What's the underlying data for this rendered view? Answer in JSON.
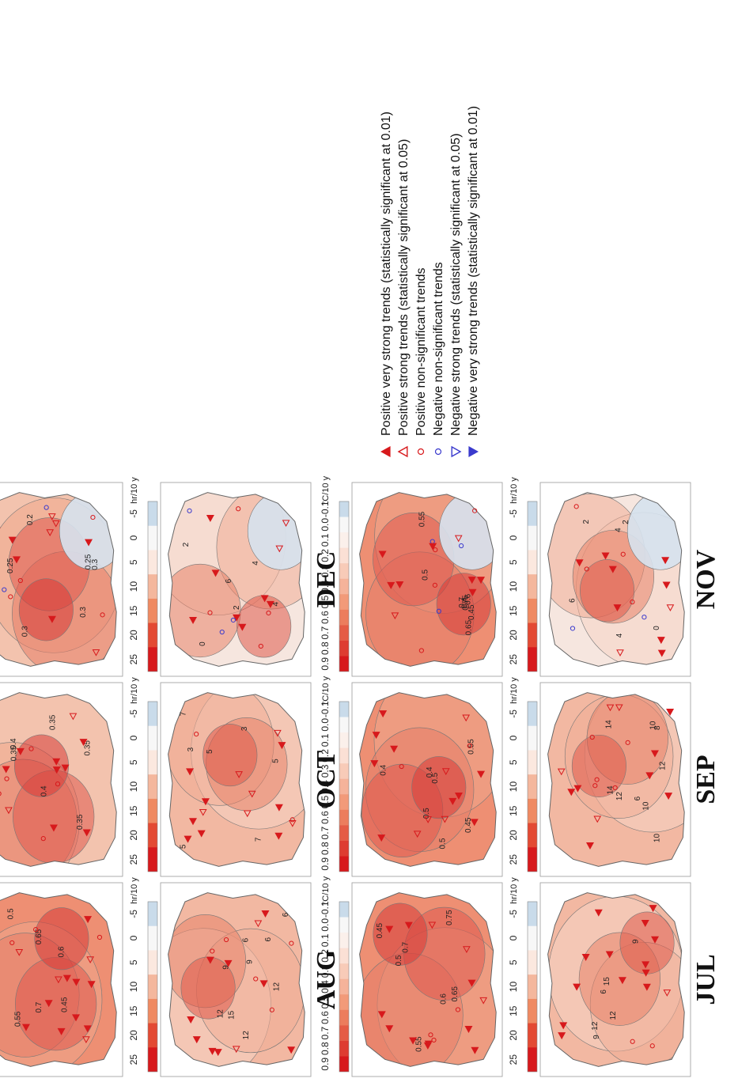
{
  "figure": {
    "panels": [
      {
        "month": "JUL",
        "hr_contours": [
          "6",
          "9",
          "9",
          "12",
          "12",
          "15"
        ],
        "temp_contours": [
          "0.45",
          "0.5",
          "0.55",
          "0.6",
          "0.65",
          "0.7",
          "0.75"
        ]
      },
      {
        "month": "SEP",
        "hr_contours": [
          "6",
          "8",
          "10",
          "10",
          "12",
          "12",
          "14",
          "14",
          "10"
        ],
        "temp_contours": [
          "0.4",
          "0.45",
          "0.5",
          "0.5",
          "0.5",
          "0.55",
          "0.4"
        ]
      },
      {
        "month": "NOV",
        "hr_contours": [
          "0",
          "2",
          "2",
          "4",
          "4",
          "6"
        ],
        "temp_contours": [
          "0.4",
          "0.45",
          "0.5",
          "0.55",
          "0.6",
          "0.65",
          "0.7",
          "0.75"
        ]
      },
      {
        "month": "AUG",
        "hr_contours": [
          "6",
          "6",
          "9",
          "9",
          "12",
          "12",
          "15",
          "6",
          "12"
        ],
        "temp_contours": [
          "0.4",
          "0.45",
          "0.5",
          "0.55",
          "0.6",
          "0.65",
          "0.7"
        ]
      },
      {
        "month": "OCT",
        "hr_contours": [
          "3",
          "3",
          "5",
          "5",
          "5",
          "7",
          "7"
        ],
        "temp_contours": [
          "0.35",
          "0.35",
          "0.4",
          "0.4",
          "0.35",
          "0.35"
        ]
      },
      {
        "month": "DEC",
        "hr_contours": [
          "0",
          "2",
          "2",
          "4",
          "4",
          "6"
        ],
        "temp_contours": [
          "0.2",
          "0.25",
          "0.25",
          "0.3",
          "0.3",
          "0.3"
        ]
      }
    ],
    "sunshine_scale": {
      "unit": "hr/10 y",
      "ticks": [
        "25",
        "20",
        "15",
        "10",
        "5",
        "0",
        "-5"
      ]
    },
    "temperature_scale": {
      "unit": "°C/10 y",
      "ticks": [
        "0.9",
        "0.8",
        "0.7",
        "0.6",
        "0.5",
        "0.4",
        "0.3",
        "0.2",
        "0.1",
        "0.0",
        "-0.1"
      ]
    },
    "legend": [
      {
        "symbol": "filled-up-triangle",
        "color": "#d7191c",
        "label": "Positive very strong trends (statistically significant at 0.01)"
      },
      {
        "symbol": "hollow-up-triangle",
        "color": "#d7191c",
        "label": "Positive strong trends (statistically significant at 0.05)"
      },
      {
        "symbol": "hollow-circle",
        "color": "#d7191c",
        "label": "Positive non-significant trends"
      },
      {
        "symbol": "hollow-circle",
        "color": "#3a3acd",
        "label": "Negative non-significant trends"
      },
      {
        "symbol": "hollow-down-triangle",
        "color": "#3a3acd",
        "label": "Negative strong trends (statistically significant at 0.05)"
      },
      {
        "symbol": "filled-down-triangle",
        "color": "#3a3acd",
        "label": "Negative very strong trends (statistically significant at 0.01)"
      }
    ],
    "colors": {
      "scale_high": "#d7191c",
      "scale_mid": "#f4b79d",
      "scale_low": "#f7f7f7",
      "scale_neg": "#c9dbea",
      "positive": "#d7191c",
      "negative": "#3a3acd"
    }
  }
}
